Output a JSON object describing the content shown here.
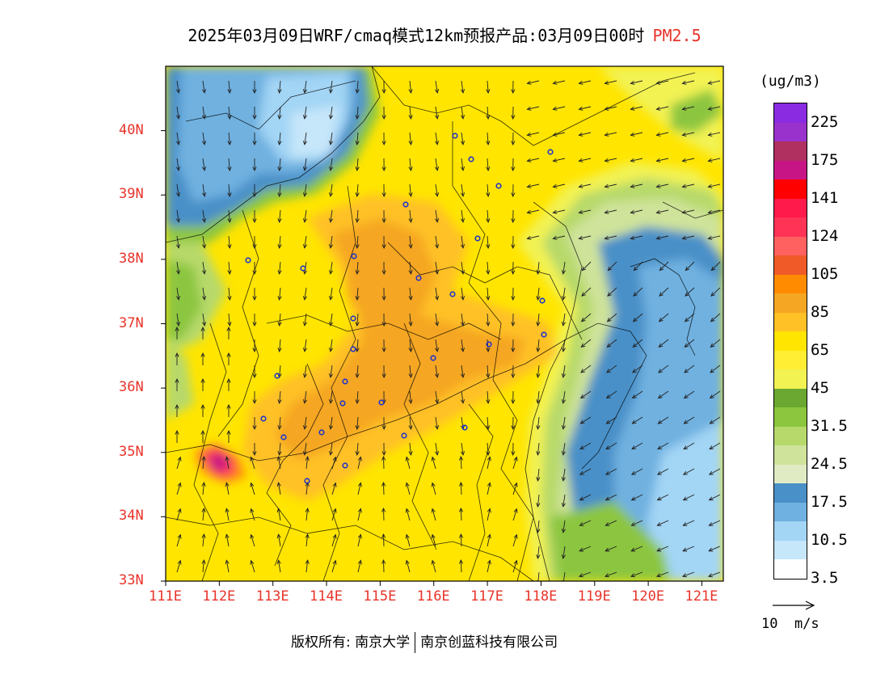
{
  "title": {
    "main": "2025年03月09日WRF/cmaq模式12km预报产品:03月09日00时",
    "pollutant": "PM2.5"
  },
  "map": {
    "lat_labels": [
      "40N",
      "39N",
      "38N",
      "37N",
      "36N",
      "35N",
      "34N",
      "33N"
    ],
    "lat_values": [
      40,
      39,
      38,
      37,
      36,
      35,
      34,
      33
    ],
    "lon_labels": [
      "111E",
      "112E",
      "113E",
      "114E",
      "115E",
      "116E",
      "117E",
      "118E",
      "119E",
      "120E",
      "121E"
    ],
    "lon_values": [
      111,
      112,
      113,
      114,
      115,
      116,
      117,
      118,
      119,
      120,
      121
    ],
    "lon_range": [
      111,
      121.4
    ],
    "lat_range": [
      33,
      41
    ],
    "label_color": "#e8332a"
  },
  "colorbar": {
    "unit": "(ug/m3)",
    "colors": [
      "#8a2be2",
      "#9932cc",
      "#b03060",
      "#c71585",
      "#ff0000",
      "#ff1a4b",
      "#ff3355",
      "#ff6060",
      "#f05a28",
      "#ff8c00",
      "#f5a623",
      "#ffc125",
      "#ffe500",
      "#ffee33",
      "#f2f252",
      "#6aa832",
      "#8cc63f",
      "#b7d96b",
      "#cfe39a",
      "#e0ebc4",
      "#4a90c8",
      "#6fb1e0",
      "#a3d5f5",
      "#c6e6fa",
      "#ffffff"
    ],
    "labels": [
      "225",
      "175",
      "141",
      "124",
      "105",
      "85",
      "65",
      "45",
      "31.5",
      "24.5",
      "17.5",
      "10.5",
      "3.5"
    ]
  },
  "wind_scale": {
    "label": "10  m/s"
  },
  "credit": {
    "left": "版权所有: 南京大学",
    "right": "南京创蓝科技有限公司"
  }
}
